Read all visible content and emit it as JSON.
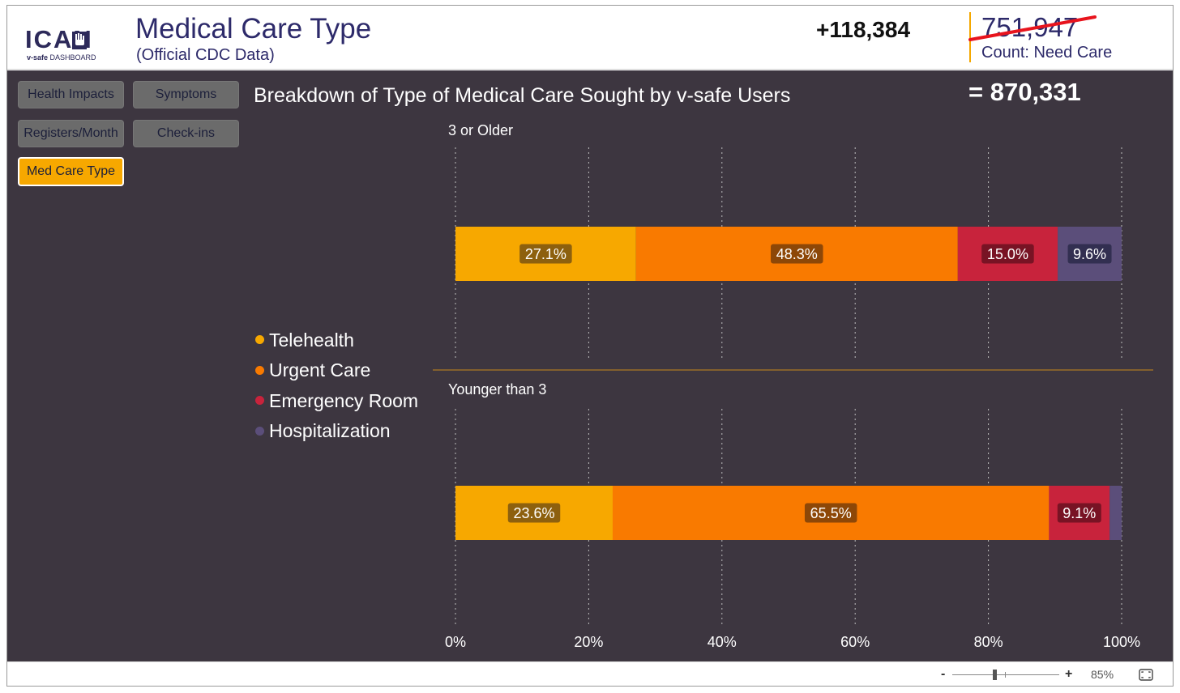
{
  "header": {
    "logo_text": "ICAN",
    "logo_sub_bold": "v-safe",
    "logo_sub_rest": " DASHBOARD",
    "title": "Medical Care Type",
    "subtitle": "(Official CDC Data)",
    "delta_count": "+118,384",
    "old_count": "751,947",
    "count_label": "Count: Need Care"
  },
  "nav": {
    "buttons": [
      {
        "label": "Health Impacts",
        "active": false
      },
      {
        "label": "Symptoms",
        "active": false
      },
      {
        "label": "Registers/Month",
        "active": false
      },
      {
        "label": "Check-ins",
        "active": false
      },
      {
        "label": "Med Care Type",
        "active": true
      }
    ]
  },
  "main": {
    "chart_title": "Breakdown of Type of Medical Care Sought by v-safe Users",
    "total_count": "= 870,331"
  },
  "legend": {
    "items": [
      {
        "label": "Telehealth",
        "color": "#f7a800"
      },
      {
        "label": "Urgent Care",
        "color": "#f97a00"
      },
      {
        "label": "Emergency Room",
        "color": "#c8233c"
      },
      {
        "label": "Hospitalization",
        "color": "#5b4e7a"
      }
    ]
  },
  "chart_data": {
    "type": "bar",
    "orientation": "horizontal",
    "stacked": true,
    "normalized": true,
    "title": "Breakdown of Type of Medical Care Sought by v-safe Users",
    "categories": [
      "3 or Older",
      "Younger than 3"
    ],
    "series": [
      {
        "name": "Telehealth",
        "color": "#f7a800",
        "values": [
          27.1,
          23.6
        ],
        "labels": [
          "27.1%",
          "23.6%"
        ]
      },
      {
        "name": "Urgent Care",
        "color": "#f97a00",
        "values": [
          48.3,
          65.5
        ],
        "labels": [
          "48.3%",
          "65.5%"
        ]
      },
      {
        "name": "Emergency Room",
        "color": "#c8233c",
        "values": [
          15.0,
          9.1
        ],
        "labels": [
          "15.0%",
          "9.1%"
        ]
      },
      {
        "name": "Hospitalization",
        "color": "#5b4e7a",
        "values": [
          9.6,
          1.8
        ],
        "labels": [
          "9.6%",
          ""
        ]
      }
    ],
    "xlim": [
      0,
      100
    ],
    "x_ticks": [
      0,
      20,
      40,
      60,
      80,
      100
    ],
    "x_tick_labels": [
      "0%",
      "20%",
      "40%",
      "60%",
      "80%",
      "100%"
    ],
    "grid": "vertical dotted",
    "legend_position": "left"
  },
  "footer": {
    "zoom_minus": "-",
    "zoom_plus": "+",
    "zoom_level": "85%",
    "zoom_value": 85
  },
  "colors": {
    "panel_bg": "#3d3640",
    "accent": "#f7a800",
    "title_text": "#2d2a6a",
    "strike": "#e8141d"
  }
}
